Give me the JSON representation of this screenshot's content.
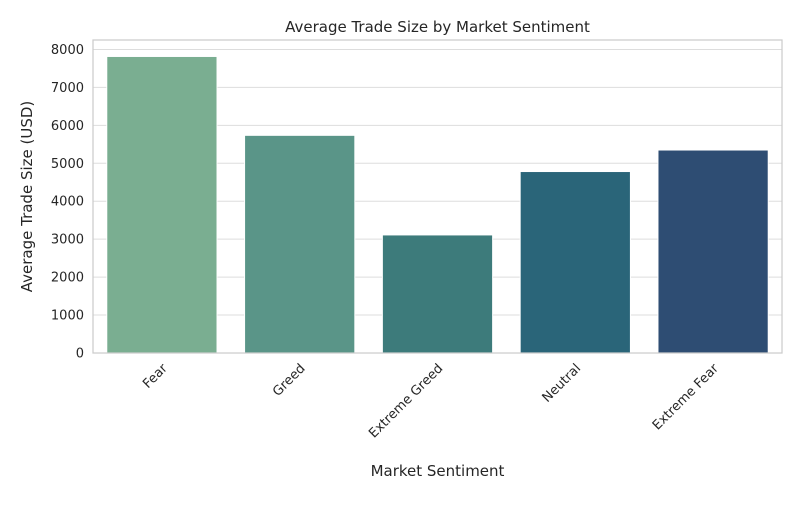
{
  "chart_data": {
    "type": "bar",
    "title": "Average Trade Size by Market Sentiment",
    "xlabel": "Market Sentiment",
    "ylabel": "Average Trade Size (USD)",
    "categories": [
      "Fear",
      "Greed",
      "Extreme Greed",
      "Neutral",
      "Extreme Fear"
    ],
    "values": [
      7816,
      5737,
      3112,
      4783,
      5350
    ],
    "ylim": [
      0,
      8250
    ],
    "yticks": [
      0,
      1000,
      2000,
      3000,
      4000,
      5000,
      6000,
      7000,
      8000
    ],
    "colors": [
      "#7aae91",
      "#5a9588",
      "#3d7b7b",
      "#2a6579",
      "#2e4d73"
    ],
    "grid": "horizontal",
    "xtick_rotation": 45
  }
}
